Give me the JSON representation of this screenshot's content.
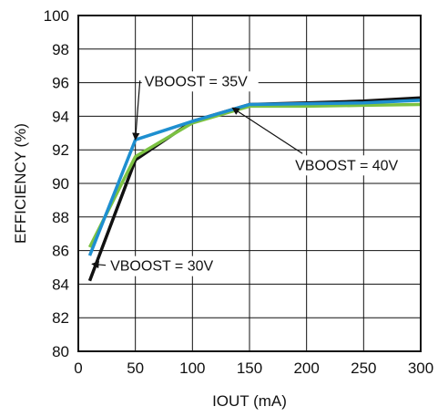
{
  "chart_data": {
    "type": "line",
    "xlabel": "IOUT (mA)",
    "ylabel": "EFFICIENCY (%)",
    "xlim": [
      0,
      300
    ],
    "ylim": [
      80,
      100
    ],
    "x_ticks": [
      0,
      50,
      100,
      150,
      200,
      250,
      300
    ],
    "y_ticks": [
      80,
      82,
      84,
      86,
      88,
      90,
      92,
      94,
      96,
      98,
      100
    ],
    "grid": true,
    "legend": "none",
    "series": [
      {
        "name": "VBOOST = 30V",
        "color": "#111111",
        "x": [
          10,
          50,
          100,
          150,
          200,
          250,
          300
        ],
        "y": [
          84.2,
          91.4,
          93.7,
          94.7,
          94.8,
          94.9,
          95.1
        ]
      },
      {
        "name": "VBOOST = 35V",
        "color": "#1e8fd0",
        "x": [
          10,
          50,
          100,
          150,
          200,
          250,
          300
        ],
        "y": [
          85.7,
          92.6,
          93.7,
          94.7,
          94.75,
          94.8,
          94.95
        ]
      },
      {
        "name": "VBOOST = 40V",
        "color": "#7cc242",
        "x": [
          10,
          50,
          100,
          150,
          200,
          250,
          300
        ],
        "y": [
          86.2,
          91.6,
          93.6,
          94.6,
          94.6,
          94.65,
          94.7
        ]
      }
    ],
    "annotations": [
      {
        "label": "VBOOST = 35V",
        "target": [
          50,
          92.6
        ],
        "text_at": [
          58,
          95.8
        ],
        "anchor": "start"
      },
      {
        "label": "VBOOST = 40V",
        "target": [
          135,
          94.5
        ],
        "text_at": [
          190,
          90.8
        ],
        "anchor": "start"
      },
      {
        "label": "VBOOST = 30V",
        "target": [
          12,
          85.2
        ],
        "text_at": [
          28,
          84.8
        ],
        "anchor": "start"
      }
    ]
  }
}
